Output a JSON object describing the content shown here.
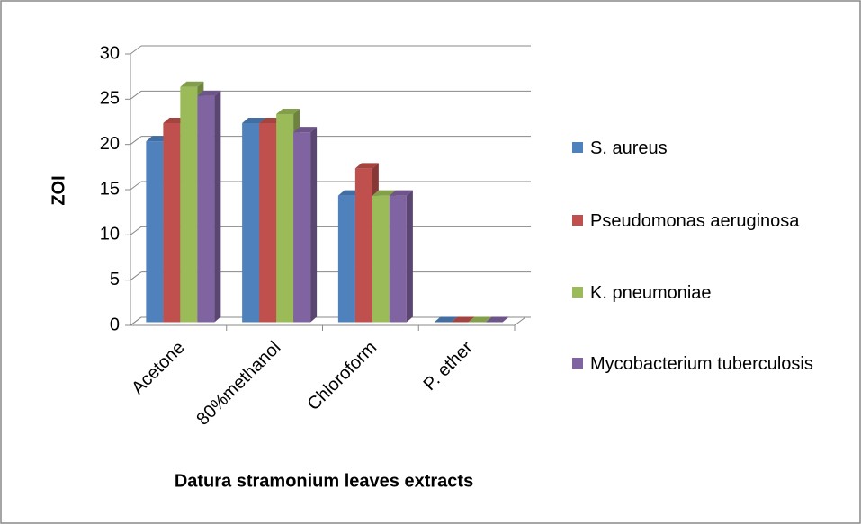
{
  "chart_data": {
    "type": "bar3d",
    "categories": [
      "Acetone",
      "80%methanol",
      "Chloroform",
      "P. ether"
    ],
    "series": [
      {
        "name": "S. aureus",
        "color": "#4f81bd",
        "values": [
          20,
          22,
          14,
          0
        ]
      },
      {
        "name": "Pseudomonas aeruginosa",
        "color": "#c0504d",
        "values": [
          22,
          22,
          17,
          0
        ]
      },
      {
        "name": "K. pneumoniae",
        "color": "#9bbb59",
        "values": [
          26,
          23,
          14,
          0
        ]
      },
      {
        "name": "Mycobacterium tuberculosis",
        "color": "#8064a2",
        "values": [
          25,
          21,
          14,
          0
        ]
      }
    ],
    "ylabel": "ZOI",
    "xlabel": "Datura stramonium leaves extracts",
    "ylim": [
      0,
      30
    ],
    "yticks": [
      0,
      5,
      10,
      15,
      20,
      25,
      30
    ],
    "grid": true,
    "legend": "right"
  }
}
